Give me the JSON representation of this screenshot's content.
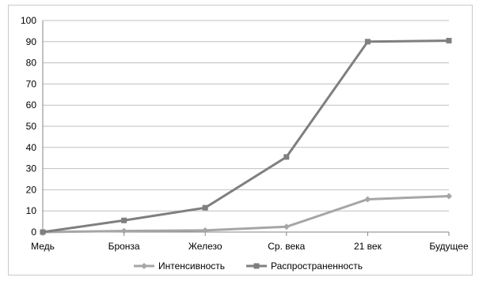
{
  "chart_data": {
    "type": "line",
    "categories": [
      "Медь",
      "Бронза",
      "Железо",
      "Ср. века",
      "21 век",
      "Будущее"
    ],
    "series": [
      {
        "name": "Интенсивность",
        "values": [
          0,
          0.5,
          0.8,
          2.5,
          15.5,
          17
        ],
        "color": "#a6a6a6",
        "marker": "diamond"
      },
      {
        "name": "Распространенность",
        "values": [
          0,
          5.5,
          11.5,
          35.5,
          90,
          90.5
        ],
        "color": "#7f7f7f",
        "marker": "square"
      }
    ],
    "ylim": [
      0,
      100
    ],
    "yticks": [
      "0",
      "10",
      "20",
      "30",
      "40",
      "50",
      "60",
      "70",
      "80",
      "90",
      "100"
    ],
    "grid": true,
    "legend_position": "bottom"
  }
}
